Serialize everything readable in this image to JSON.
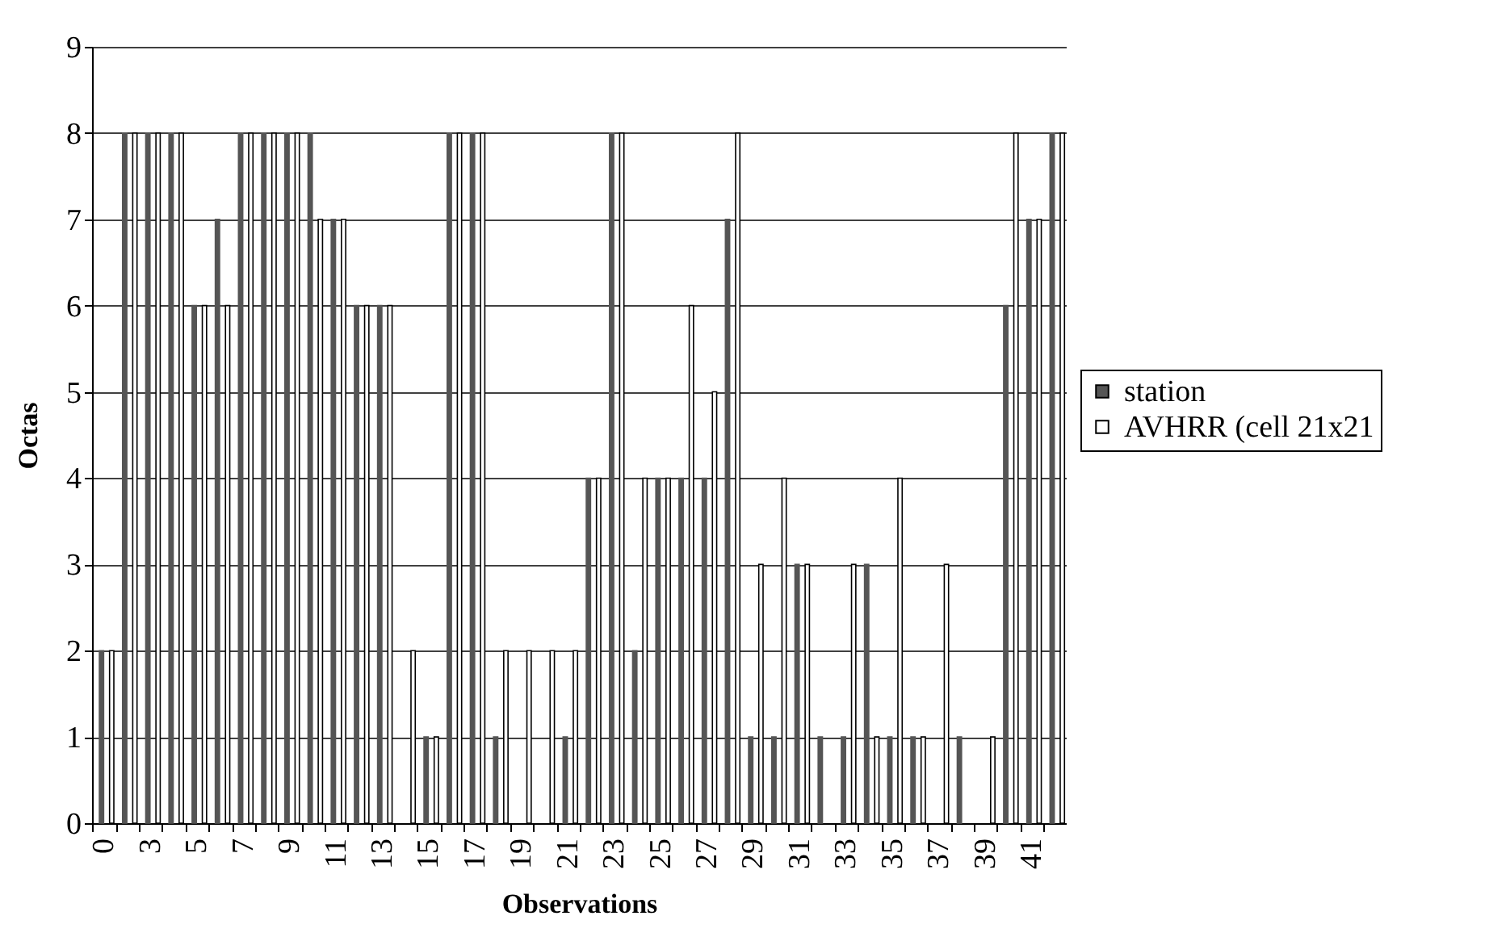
{
  "chart_data": {
    "type": "bar",
    "xlabel": "Observations",
    "ylabel": "Octas",
    "categories": [
      "0",
      null,
      "3",
      null,
      "5",
      null,
      "7",
      null,
      "9",
      null,
      "11",
      null,
      "13",
      null,
      "15",
      null,
      "17",
      null,
      "19",
      null,
      "21",
      null,
      "23",
      null,
      "25",
      null,
      "27",
      null,
      "29",
      null,
      "31",
      null,
      "33",
      null,
      "35",
      null,
      "37",
      null,
      "39",
      null,
      "41",
      null
    ],
    "series": [
      {
        "name": "station",
        "color": "#555555",
        "values": [
          2,
          8,
          8,
          8,
          6,
          7,
          8,
          8,
          8,
          8,
          7,
          6,
          6,
          0,
          1,
          8,
          8,
          1,
          0,
          0,
          1,
          4,
          8,
          2,
          4,
          4,
          4,
          7,
          1,
          1,
          3,
          1,
          1,
          3,
          1,
          1,
          0,
          1,
          0,
          6,
          7,
          8
        ]
      },
      {
        "name": "AVHRR (cell 21x21",
        "color": "#ffffff",
        "values": [
          2,
          8,
          8,
          8,
          6,
          6,
          8,
          8,
          8,
          7,
          7,
          6,
          6,
          2,
          1,
          8,
          8,
          2,
          2,
          2,
          2,
          4,
          8,
          4,
          4,
          6,
          5,
          8,
          3,
          4,
          3,
          0,
          3,
          1,
          4,
          1,
          3,
          0,
          1,
          8,
          7,
          8
        ]
      }
    ],
    "ylim": [
      0,
      9
    ],
    "yticks": [
      0,
      1,
      2,
      3,
      4,
      5,
      6,
      7,
      8,
      9
    ],
    "grid": "y",
    "legend": "right"
  }
}
